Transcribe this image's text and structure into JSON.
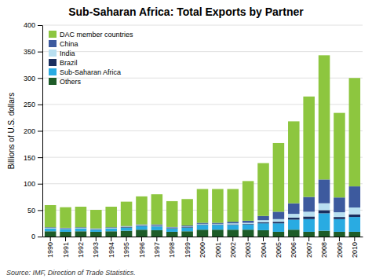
{
  "chart_data": {
    "type": "bar",
    "stacked": true,
    "title": "Sub-Saharan Africa: Total Exports by Partner",
    "ylabel": "Billions of U.S. dollars",
    "source": "Source: IMF, Direction of Trade Statistics.",
    "categories": [
      "1990",
      "1991",
      "1992",
      "1993",
      "1994",
      "1995",
      "1996",
      "1997",
      "1998",
      "1999",
      "2000",
      "2001",
      "2002",
      "2003",
      "2004",
      "2005",
      "2006",
      "2007",
      "2008",
      "2009",
      "2010"
    ],
    "series": [
      {
        "name": "Others",
        "color": "#1e5c28",
        "values": [
          10,
          9,
          10,
          9,
          10,
          11,
          13,
          12,
          9,
          10,
          13,
          13,
          13,
          13,
          12,
          9,
          13,
          9,
          11,
          9,
          9
        ]
      },
      {
        "name": "Sub-Saharan Africa",
        "color": "#29abe2",
        "values": [
          5,
          5,
          5,
          4,
          5,
          6,
          7,
          7,
          6,
          7,
          9,
          9,
          9,
          10,
          13,
          16,
          19,
          24,
          33,
          24,
          28
        ]
      },
      {
        "name": "Brazil",
        "color": "#1a2e5e",
        "values": [
          0.5,
          0.5,
          0.5,
          0.5,
          0.5,
          1,
          1,
          1,
          1,
          1,
          1,
          1,
          1,
          1,
          2,
          3,
          4,
          5,
          6,
          4,
          5
        ]
      },
      {
        "name": "India",
        "color": "#b8dff0",
        "values": [
          1,
          1,
          1,
          1,
          1,
          1,
          1,
          1,
          1,
          1,
          1,
          1,
          2,
          2,
          4,
          5,
          7,
          9,
          13,
          9,
          13
        ]
      },
      {
        "name": "China",
        "color": "#3d5a9e",
        "values": [
          1,
          1,
          1,
          1,
          1,
          1,
          1,
          2,
          1,
          2,
          2,
          2,
          3,
          4,
          8,
          14,
          20,
          28,
          45,
          28,
          40
        ]
      },
      {
        "name": "DAC member countries",
        "color": "#8dc63f",
        "values": [
          42,
          39,
          39,
          35,
          39,
          46,
          53,
          57,
          49,
          50,
          64,
          64,
          62,
          75,
          100,
          130,
          155,
          190,
          235,
          160,
          205
        ]
      }
    ],
    "ylim": [
      0,
      400
    ],
    "yticks": [
      0,
      50,
      100,
      150,
      200,
      250,
      300,
      350,
      400
    ],
    "grid": true,
    "legend": "upper left"
  }
}
